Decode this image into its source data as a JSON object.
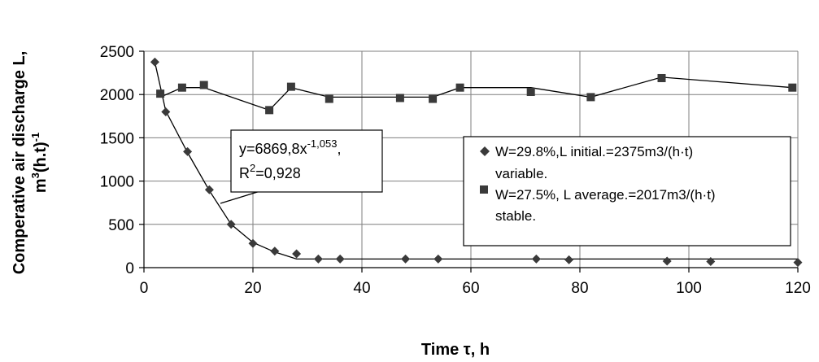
{
  "chart_data": {
    "type": "scatter",
    "xlabel": "Time τ, h",
    "ylabel": "Comperative air discharge L, m3(h.t)-1",
    "xlim": [
      0,
      120
    ],
    "ylim": [
      0,
      2500
    ],
    "x_ticks": [
      0,
      20,
      40,
      60,
      80,
      100,
      120
    ],
    "y_ticks": [
      0,
      500,
      1000,
      1500,
      2000,
      2500
    ],
    "grid": true,
    "legend_position": "right",
    "annotation": {
      "line1": "y=6869,8x",
      "line1_exp": "-1,053",
      "line1_end": ",",
      "line2_base": "R",
      "line2_exp": "2",
      "line2_end": "=0,928"
    },
    "series": [
      {
        "name_line1": "W=29.8%,L initial.=2375m3/(h·t)",
        "name_line2": "variable.",
        "marker": "diamond",
        "color": "#3a3a3a",
        "x": [
          2,
          4,
          8,
          12,
          16,
          20,
          24,
          28,
          32,
          36,
          48,
          54,
          72,
          78,
          96,
          104,
          120
        ],
        "y": [
          2375,
          1800,
          1340,
          900,
          500,
          280,
          190,
          160,
          100,
          100,
          100,
          100,
          100,
          90,
          75,
          70,
          60
        ],
        "line": {
          "x": [
            2,
            4,
            8,
            12,
            16,
            20,
            24,
            28,
            32,
            36,
            48,
            54,
            72,
            78,
            96,
            104,
            120
          ],
          "y": [
            2375,
            1810,
            1330,
            890,
            500,
            290,
            180,
            100,
            100,
            100,
            100,
            100,
            100,
            100,
            100,
            100,
            100
          ]
        }
      },
      {
        "name_line1": "W=27.5%, L average.=2017m3/(h·t)",
        "name_line2": "stable.",
        "marker": "square",
        "color": "#3a3a3a",
        "x": [
          3,
          7,
          11,
          23,
          27,
          34,
          47,
          53,
          58,
          71,
          82,
          95,
          119
        ],
        "y": [
          2010,
          2080,
          2110,
          1820,
          2090,
          1950,
          1960,
          1950,
          2080,
          2030,
          1970,
          2190,
          2080
        ],
        "line": {
          "x": [
            3,
            7,
            11,
            23,
            27,
            34,
            47,
            53,
            58,
            71,
            82,
            95,
            119
          ],
          "y": [
            1970,
            2080,
            2080,
            1820,
            2080,
            1970,
            1970,
            1970,
            2080,
            2080,
            1970,
            2200,
            2080
          ]
        }
      }
    ]
  }
}
